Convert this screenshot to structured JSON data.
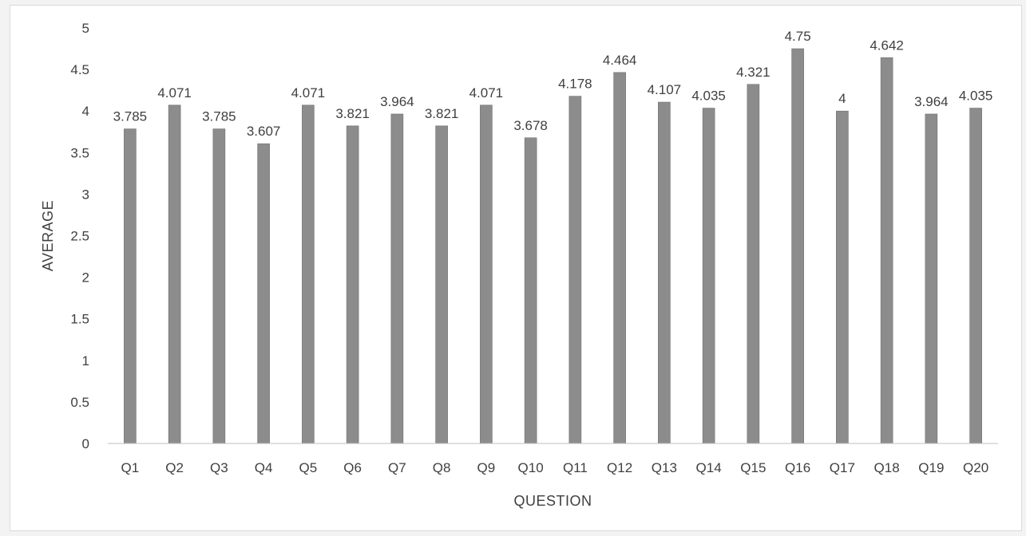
{
  "chart_data": {
    "type": "bar",
    "categories": [
      "Q1",
      "Q2",
      "Q3",
      "Q4",
      "Q5",
      "Q6",
      "Q7",
      "Q8",
      "Q9",
      "Q10",
      "Q11",
      "Q12",
      "Q13",
      "Q14",
      "Q15",
      "Q16",
      "Q17",
      "Q18",
      "Q19",
      "Q20"
    ],
    "values": [
      3.785,
      4.071,
      3.785,
      3.607,
      4.071,
      3.821,
      3.964,
      3.821,
      4.071,
      3.678,
      4.178,
      4.464,
      4.107,
      4.035,
      4.321,
      4.75,
      4,
      4.642,
      3.964,
      4.035
    ],
    "data_labels": [
      "3.785",
      "4.071",
      "3.785",
      "3.607",
      "4.071",
      "3.821",
      "3.964",
      "3.821",
      "4.071",
      "3.678",
      "4.178",
      "4.464",
      "4.107",
      "4.035",
      "4.321",
      "4.75",
      "4",
      "4.642",
      "3.964",
      "4.035"
    ],
    "xlabel": "QUESTION",
    "ylabel": "AVERAGE",
    "ylim": [
      0,
      5
    ],
    "yticks": [
      "0",
      "0.5",
      "1",
      "1.5",
      "2",
      "2.5",
      "3",
      "3.5",
      "4",
      "4.5",
      "5"
    ],
    "grid": false,
    "bar_color": "#8c8c8c",
    "text_color": "#404040"
  }
}
